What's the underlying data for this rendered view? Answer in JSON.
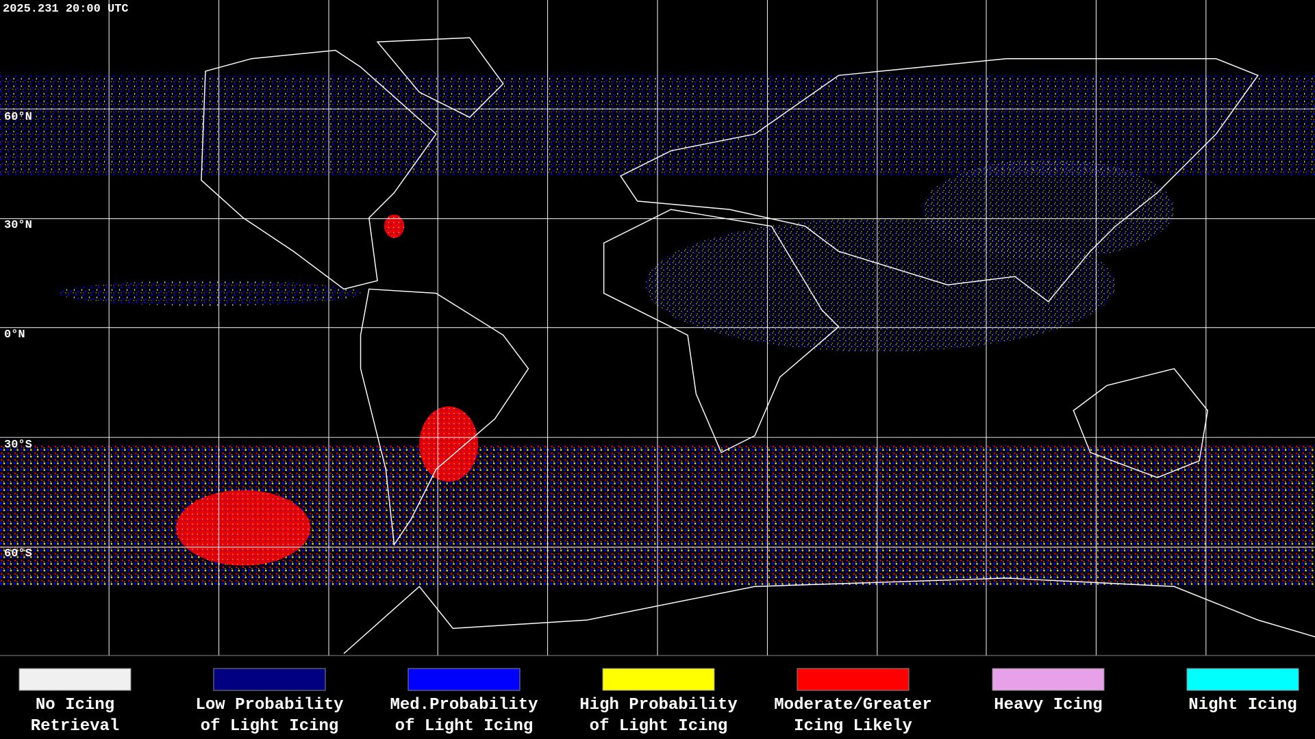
{
  "header": {
    "timestamp": "2025.231 20:00 UTC"
  },
  "map": {
    "latitude_labels": [
      "60°N",
      "30°N",
      "0°N",
      "30°S",
      "60°S"
    ]
  },
  "legend": {
    "items": [
      {
        "lines": [
          "No Icing",
          "Retrieval"
        ],
        "color": "#f0f0f0"
      },
      {
        "lines": [
          "Low Probability",
          "of Light Icing"
        ],
        "color": "#000080"
      },
      {
        "lines": [
          "Med.Probability",
          "of Light Icing"
        ],
        "color": "#0000ff"
      },
      {
        "lines": [
          "High Probability",
          "of Light Icing"
        ],
        "color": "#ffff00"
      },
      {
        "lines": [
          "Moderate/Greater",
          "Icing Likely"
        ],
        "color": "#ff0000"
      },
      {
        "lines": [
          "Heavy Icing"
        ],
        "color": "#e8a0e8"
      },
      {
        "lines": [
          "Night Icing"
        ],
        "color": "#00ffff"
      }
    ]
  }
}
